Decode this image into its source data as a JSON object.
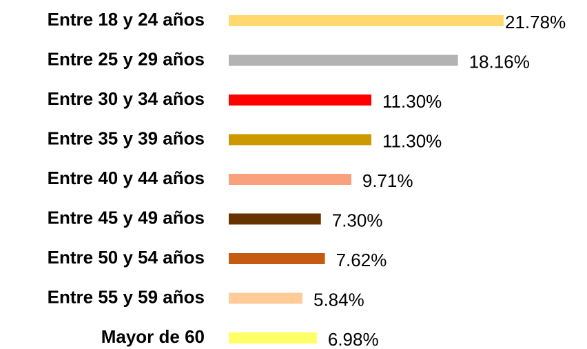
{
  "chart_data": {
    "type": "bar",
    "orientation": "horizontal",
    "categories": [
      "Entre 18 y 24 años",
      "Entre 25 y 29 años",
      "Entre 30 y 34 años",
      "Entre 35 y 39 años",
      "Entre 40 y 44 años",
      "Entre 45 y 49 años",
      "Entre 50 y 54 años",
      "Entre 55 y 59 años",
      "Mayor de 60"
    ],
    "values": [
      21.78,
      18.16,
      11.3,
      11.3,
      9.71,
      7.3,
      7.62,
      5.84,
      6.98
    ],
    "value_labels": [
      "21.78%",
      "18.16%",
      "11.30%",
      "11.30%",
      "9.71%",
      "7.30%",
      "7.62%",
      "5.84%",
      "6.98%"
    ],
    "colors": [
      "#FFD96E",
      "#B3B3B3",
      "#FF0000",
      "#CC9900",
      "#F9A07C",
      "#663300",
      "#C55A11",
      "#FFCC99",
      "#FFFF66"
    ]
  }
}
